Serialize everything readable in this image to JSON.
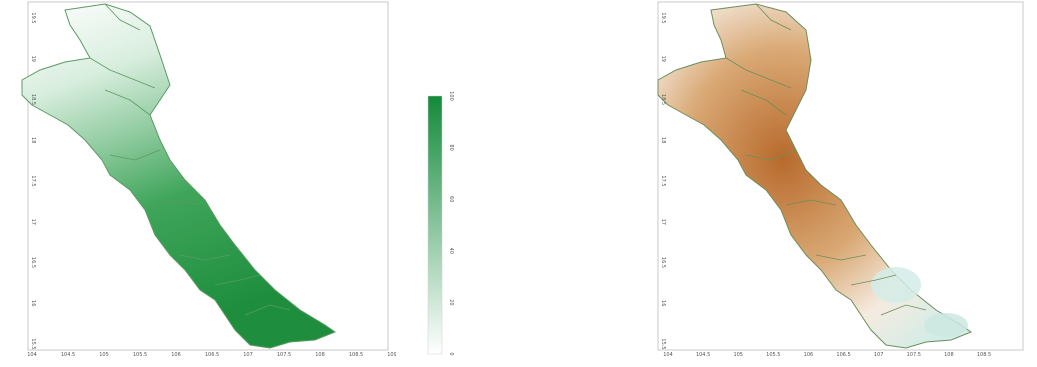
{
  "left_map": {
    "x_ticks": [
      "104",
      "104.5",
      "105",
      "105.5",
      "106",
      "106.5",
      "107",
      "107.5",
      "108",
      "108.5",
      "109"
    ],
    "y_ticks": [
      "19.5",
      "19",
      "18.5",
      "18",
      "17.5",
      "17",
      "16.5",
      "16",
      "15.5"
    ],
    "fill_color": "#1e8e3e"
  },
  "right_map": {
    "x_ticks": [
      "104",
      "104.5",
      "105",
      "105.5",
      "106",
      "106.5",
      "107",
      "107.5",
      "108",
      "108.5"
    ],
    "y_ticks": [
      "19.5",
      "19",
      "18.5",
      "18",
      "17.5",
      "17",
      "16.5",
      "16",
      "15.5"
    ],
    "fill_color": "#b86a2c"
  },
  "colorbar": {
    "ticks": [
      "0",
      "20",
      "40",
      "60",
      "80",
      "100"
    ],
    "color_low": "#ffffff",
    "color_high": "#138a3a"
  }
}
